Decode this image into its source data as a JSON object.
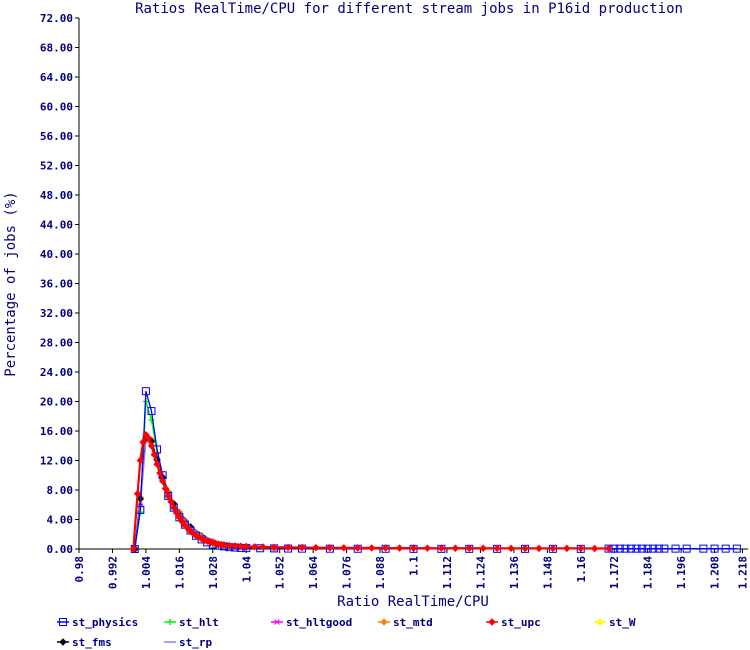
{
  "chart_data": {
    "type": "line",
    "title": "Ratios RealTime/CPU for different stream jobs in P16id production",
    "xlabel": "Ratio RealTime/CPU",
    "ylabel": "Percentage of jobs (%)",
    "xlim": [
      0.98,
      1.22
    ],
    "ylim": [
      0,
      72
    ],
    "x_ticks": [
      "0.98",
      "0.992",
      "1.004",
      "1.016",
      "1.028",
      "1.04",
      "1.052",
      "1.064",
      "1.076",
      "1.088",
      "1.1",
      "1.112",
      "1.124",
      "1.136",
      "1.148",
      "1.16",
      "1.172",
      "1.184",
      "1.196",
      "1.208",
      "1.218"
    ],
    "y_ticks": [
      "0.00",
      "4.00",
      "8.00",
      "12.00",
      "16.00",
      "20.00",
      "24.00",
      "28.00",
      "32.00",
      "36.00",
      "40.00",
      "44.00",
      "48.00",
      "52.00",
      "56.00",
      "60.00",
      "64.00",
      "68.00",
      "72.00"
    ],
    "grid": false,
    "legend_position": "bottom",
    "series": [
      {
        "name": "st_physics",
        "color": "#0000ff",
        "marker": "square",
        "x": [
          1.0,
          1.002,
          1.004,
          1.006,
          1.008,
          1.01,
          1.012,
          1.014,
          1.016,
          1.018,
          1.02,
          1.022,
          1.024,
          1.026,
          1.028,
          1.03,
          1.032,
          1.034,
          1.036,
          1.038,
          1.04,
          1.045,
          1.05,
          1.055,
          1.06,
          1.07,
          1.08,
          1.09,
          1.1,
          1.11,
          1.12,
          1.13,
          1.14,
          1.15,
          1.16,
          1.17,
          1.172,
          1.174,
          1.176,
          1.178,
          1.18,
          1.182,
          1.184,
          1.186,
          1.188,
          1.19,
          1.194,
          1.198,
          1.204,
          1.208,
          1.212,
          1.216
        ],
        "y": [
          0,
          5.3,
          21.4,
          18.7,
          13.5,
          10.0,
          7.2,
          5.6,
          4.3,
          3.3,
          2.5,
          1.8,
          1.3,
          0.9,
          0.6,
          0.45,
          0.35,
          0.25,
          0.2,
          0.15,
          0.12,
          0.1,
          0.08,
          0.06,
          0.05,
          0.04,
          0.03,
          0.03,
          0.02,
          0.02,
          0.02,
          0.02,
          0.02,
          0.02,
          0.02,
          0.05,
          0.05,
          0.05,
          0.05,
          0.05,
          0.05,
          0.05,
          0.05,
          0.05,
          0.05,
          0.05,
          0.05,
          0.05,
          0.05,
          0.05,
          0.05,
          0.05
        ]
      },
      {
        "name": "st_hlt",
        "color": "#00ff00",
        "marker": "plus",
        "x": [
          1.0,
          1.002,
          1.004,
          1.006,
          1.008,
          1.01,
          1.012,
          1.014,
          1.016,
          1.018,
          1.02,
          1.024,
          1.028,
          1.032,
          1.04,
          1.05
        ],
        "y": [
          0,
          5.0,
          20.0,
          17.5,
          13.0,
          9.5,
          7.0,
          5.5,
          4.2,
          3.2,
          2.4,
          1.3,
          0.6,
          0.35,
          0.12,
          0.05
        ]
      },
      {
        "name": "st_hltgood",
        "color": "#ff00ff",
        "marker": "asterisk",
        "x": [
          1.0,
          1.002,
          1.004,
          1.006,
          1.008,
          1.01,
          1.012,
          1.014,
          1.016,
          1.018,
          1.02,
          1.024,
          1.028,
          1.032,
          1.04,
          1.05
        ],
        "y": [
          0,
          6.0,
          15.0,
          14.5,
          12.0,
          9.5,
          7.5,
          6.0,
          4.8,
          3.7,
          2.8,
          1.6,
          0.9,
          0.5,
          0.25,
          0.1
        ]
      },
      {
        "name": "st_mtd",
        "color": "#ff8000",
        "marker": "diamond",
        "x": [
          1.0,
          1.002,
          1.004,
          1.006,
          1.008,
          1.01,
          1.012,
          1.014,
          1.016,
          1.018,
          1.02,
          1.024,
          1.028,
          1.032,
          1.04,
          1.05
        ],
        "y": [
          0,
          7.0,
          15.2,
          14.8,
          12.2,
          9.8,
          7.8,
          6.2,
          5.0,
          3.9,
          3.0,
          1.8,
          1.0,
          0.6,
          0.3,
          0.15
        ]
      },
      {
        "name": "st_upc",
        "color": "#ff0000",
        "marker": "diamond",
        "x": [
          0.9995,
          1.001,
          1.002,
          1.003,
          1.004,
          1.005,
          1.006,
          1.007,
          1.008,
          1.009,
          1.01,
          1.011,
          1.012,
          1.013,
          1.014,
          1.015,
          1.016,
          1.017,
          1.018,
          1.019,
          1.02,
          1.021,
          1.022,
          1.023,
          1.024,
          1.025,
          1.026,
          1.027,
          1.028,
          1.029,
          1.03,
          1.031,
          1.032,
          1.034,
          1.036,
          1.038,
          1.04,
          1.043,
          1.046,
          1.05,
          1.055,
          1.06,
          1.065,
          1.07,
          1.075,
          1.08,
          1.085,
          1.09,
          1.095,
          1.1,
          1.105,
          1.11,
          1.115,
          1.12,
          1.125,
          1.13,
          1.135,
          1.14,
          1.145,
          1.15,
          1.155,
          1.16,
          1.165,
          1.17
        ],
        "y": [
          0,
          7.5,
          12.0,
          14.5,
          15.5,
          15.0,
          14.0,
          12.8,
          11.5,
          10.3,
          9.2,
          8.2,
          7.2,
          6.4,
          5.6,
          4.9,
          4.3,
          3.7,
          3.2,
          2.8,
          2.4,
          2.1,
          1.8,
          1.6,
          1.4,
          1.2,
          1.05,
          0.95,
          0.85,
          0.75,
          0.68,
          0.6,
          0.55,
          0.48,
          0.42,
          0.38,
          0.34,
          0.3,
          0.27,
          0.24,
          0.22,
          0.2,
          0.18,
          0.17,
          0.16,
          0.15,
          0.14,
          0.13,
          0.12,
          0.12,
          0.11,
          0.11,
          0.1,
          0.1,
          0.1,
          0.09,
          0.09,
          0.09,
          0.08,
          0.08,
          0.08,
          0.08,
          0.07,
          0.07
        ]
      },
      {
        "name": "st_W",
        "color": "#ffff00",
        "marker": "diamond",
        "x": [
          1.0,
          1.002,
          1.004,
          1.006,
          1.008,
          1.01,
          1.014,
          1.02,
          1.03,
          1.04
        ],
        "y": [
          0,
          6.5,
          14.8,
          14.3,
          12.0,
          9.6,
          6.0,
          2.9,
          0.6,
          0.25
        ]
      },
      {
        "name": "st_fms",
        "color": "#000000",
        "marker": "diamond",
        "x": [
          1.0,
          1.002,
          1.004,
          1.006,
          1.008,
          1.01,
          1.014,
          1.02,
          1.03,
          1.04
        ],
        "y": [
          0,
          6.8,
          15.0,
          14.6,
          12.1,
          9.7,
          6.1,
          3.0,
          0.6,
          0.25
        ]
      },
      {
        "name": "st_rp",
        "color": "#8080ff",
        "marker": "line",
        "x": [
          1.0,
          1.002,
          1.004,
          1.006,
          1.008,
          1.01,
          1.014,
          1.02,
          1.03,
          1.04
        ],
        "y": [
          0,
          6.2,
          14.6,
          14.2,
          11.9,
          9.5,
          6.0,
          2.9,
          0.6,
          0.25
        ]
      }
    ],
    "draw_order": [
      "st_hlt",
      "st_hltgood",
      "st_mtd",
      "st_W",
      "st_fms",
      "st_rp",
      "st_physics",
      "st_upc"
    ]
  }
}
